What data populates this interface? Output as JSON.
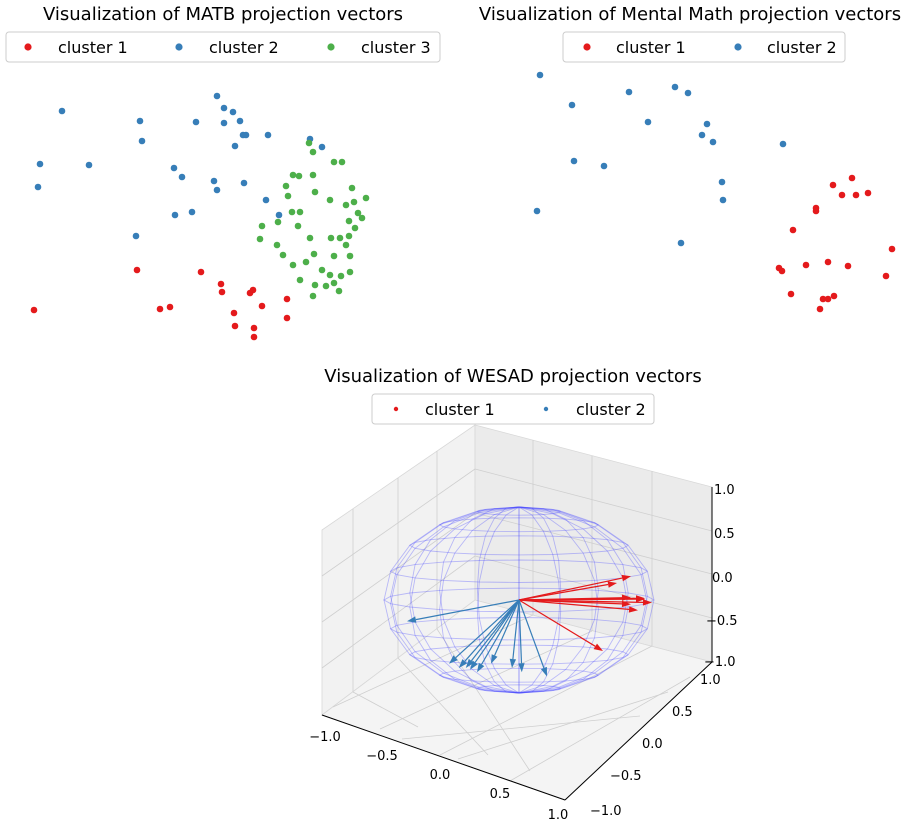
{
  "chart_data": [
    {
      "type": "scatter",
      "title": "Visualization of MATB projection vectors",
      "legend_position": "top",
      "axes_visible": false,
      "series": [
        {
          "name": "cluster 1",
          "color": "#e41a1c",
          "points": [
            [
              34,
              310
            ],
            [
              137,
              270
            ],
            [
              160,
              309
            ],
            [
              170,
              307
            ],
            [
              201,
              272
            ],
            [
              221,
              284
            ],
            [
              222,
              292
            ],
            [
              234,
              313
            ],
            [
              235,
              326
            ],
            [
              250,
              293
            ],
            [
              253,
              290
            ],
            [
              254,
              328
            ],
            [
              254,
              337
            ],
            [
              262,
              306
            ],
            [
              287,
              299
            ],
            [
              287,
              318
            ]
          ]
        },
        {
          "name": "cluster 2",
          "color": "#377eb8",
          "points": [
            [
              62,
              111
            ],
            [
              40,
              164
            ],
            [
              38,
              187
            ],
            [
              89,
              165
            ],
            [
              140,
              121
            ],
            [
              142,
              141
            ],
            [
              136,
              236
            ],
            [
              174,
              168
            ],
            [
              175,
              215
            ],
            [
              182,
              177
            ],
            [
              192,
              212
            ],
            [
              196,
              122
            ],
            [
              217,
              96
            ],
            [
              224,
              108
            ],
            [
              233,
              112
            ],
            [
              224,
              123
            ],
            [
              240,
              121
            ],
            [
              235,
              146
            ],
            [
              243,
              135
            ],
            [
              246,
              135
            ],
            [
              214,
              181
            ],
            [
              217,
              190
            ],
            [
              244,
              183
            ],
            [
              268,
              135
            ],
            [
              266,
              200
            ],
            [
              279,
              215
            ],
            [
              310,
              139
            ],
            [
              322,
              147
            ]
          ]
        },
        {
          "name": "cluster 3",
          "color": "#4daf4a",
          "points": [
            [
              309,
              143
            ],
            [
              313,
              152
            ],
            [
              334,
              162
            ],
            [
              342,
              162
            ],
            [
              293,
              175
            ],
            [
              286,
              186
            ],
            [
              299,
              176
            ],
            [
              313,
              175
            ],
            [
              352,
              188
            ],
            [
              288,
              196
            ],
            [
              292,
              212
            ],
            [
              300,
              212
            ],
            [
              315,
              192
            ],
            [
              330,
              200
            ],
            [
              346,
              205
            ],
            [
              354,
              202
            ],
            [
              366,
              198
            ],
            [
              358,
              213
            ],
            [
              362,
              218
            ],
            [
              349,
              221
            ],
            [
              355,
              228
            ],
            [
              349,
              236
            ],
            [
              346,
              245
            ],
            [
              340,
              238
            ],
            [
              331,
              238
            ],
            [
              310,
              238
            ],
            [
              298,
              226
            ],
            [
              278,
              222
            ],
            [
              262,
              226
            ],
            [
              260,
              239
            ],
            [
              277,
              245
            ],
            [
              283,
              255
            ],
            [
              293,
              265
            ],
            [
              306,
              262
            ],
            [
              314,
              254
            ],
            [
              334,
              256
            ],
            [
              350,
              256
            ],
            [
              322,
              270
            ],
            [
              330,
              275
            ],
            [
              341,
              276
            ],
            [
              350,
              272
            ],
            [
              315,
              285
            ],
            [
              326,
              286
            ],
            [
              334,
              283
            ],
            [
              339,
              291
            ],
            [
              313,
              296
            ],
            [
              300,
              280
            ]
          ]
        }
      ]
    },
    {
      "type": "scatter",
      "title": "Visualization of Mental Math projection vectors",
      "legend_position": "top",
      "axes_visible": false,
      "series": [
        {
          "name": "cluster 1",
          "color": "#e41a1c",
          "points": [
            [
              852,
              178
            ],
            [
              833,
              185
            ],
            [
              842,
              195
            ],
            [
              856,
              195
            ],
            [
              868,
              193
            ],
            [
              816,
              208
            ],
            [
              816,
              211
            ],
            [
              793,
              230
            ],
            [
              892,
              249
            ],
            [
              806,
              265
            ],
            [
              779,
              268
            ],
            [
              782,
              271
            ],
            [
              828,
              262
            ],
            [
              848,
              266
            ],
            [
              886,
              276
            ],
            [
              791,
              294
            ],
            [
              834,
              296
            ],
            [
              823,
              299
            ],
            [
              828,
              299
            ],
            [
              820,
              309
            ]
          ]
        },
        {
          "name": "cluster 2",
          "color": "#377eb8",
          "points": [
            [
              540,
              75
            ],
            [
              572,
              105
            ],
            [
              629,
              92
            ],
            [
              675,
              87
            ],
            [
              688,
              93
            ],
            [
              648,
              122
            ],
            [
              707,
              124
            ],
            [
              702,
              135
            ],
            [
              713,
              142
            ],
            [
              783,
              144
            ],
            [
              574,
              161
            ],
            [
              604,
              166
            ],
            [
              722,
              182
            ],
            [
              723,
              200
            ],
            [
              537,
              211
            ],
            [
              681,
              243
            ]
          ]
        }
      ]
    },
    {
      "type": "3d-quiver",
      "title": "Visualization of WESAD projection vectors",
      "legend_position": "top",
      "x_ticks": [
        "−1.0",
        "−0.5",
        "0.0",
        "0.5",
        "1.0"
      ],
      "y_ticks": [
        "−1.0",
        "−0.5",
        "0.0",
        "0.5",
        "1.0"
      ],
      "z_ticks": [
        "−1.0",
        "−0.5",
        "0.0",
        "0.5",
        "1.0"
      ],
      "xlim": [
        -1,
        1
      ],
      "ylim": [
        -1,
        1
      ],
      "zlim": [
        -1,
        1
      ],
      "series": [
        {
          "name": "cluster 1",
          "color": "#e41a1c",
          "vectors": [
            [
              0.8,
              0.28
            ],
            [
              0.7,
              0.2
            ],
            [
              0.9,
              0.02
            ],
            [
              0.8,
              0.03
            ],
            [
              0.85,
              -0.12
            ],
            [
              0.8,
              -0.05
            ],
            [
              0.6,
              -0.6
            ],
            [
              0.95,
              -0.03
            ],
            [
              0.9,
              0.01
            ]
          ]
        },
        {
          "name": "cluster 2",
          "color": "#377eb8",
          "vectors": [
            [
              -0.8,
              -0.25
            ],
            [
              -0.5,
              -0.75
            ],
            [
              -0.43,
              -0.8
            ],
            [
              -0.38,
              -0.8
            ],
            [
              -0.35,
              -0.82
            ],
            [
              -0.3,
              -0.85
            ],
            [
              0.2,
              -0.9
            ],
            [
              0.02,
              -0.85
            ],
            [
              -0.2,
              -0.75
            ],
            [
              -0.05,
              -0.8
            ]
          ]
        }
      ]
    }
  ]
}
